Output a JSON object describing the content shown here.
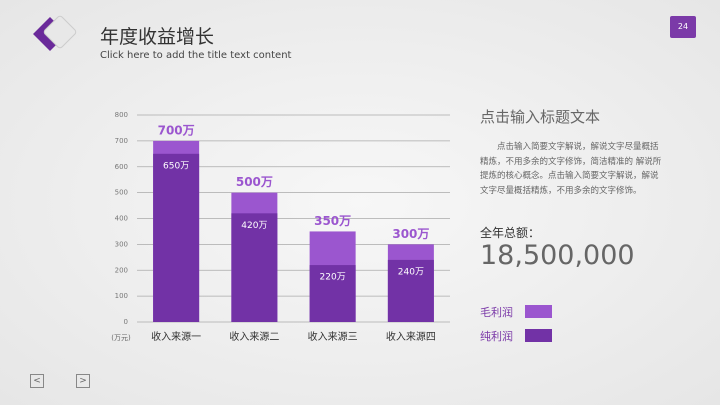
{
  "header": {
    "title": "年度收益增长",
    "subtitle": "Click here to add the title text content",
    "page_number": "24"
  },
  "chart_data": {
    "type": "bar",
    "y_unit": "(万元)",
    "categories": [
      "收入来源一",
      "收入来源二",
      "收入来源三",
      "收入来源四"
    ],
    "series": [
      {
        "name": "毛利润",
        "color": "#9b56cf",
        "values": [
          700,
          500,
          350,
          300
        ],
        "value_labels": [
          "700万",
          "500万",
          "350万",
          "300万"
        ]
      },
      {
        "name": "纯利润",
        "color": "#7232a6",
        "values": [
          650,
          420,
          220,
          240
        ],
        "value_labels": [
          "650万",
          "420万",
          "220万",
          "240万"
        ]
      }
    ],
    "ylim": [
      0,
      800
    ],
    "yticks": [
      0,
      100,
      200,
      300,
      400,
      500,
      600,
      700,
      800
    ],
    "grid": true
  },
  "side": {
    "title": "点击输入标题文本",
    "text": "点击输入简要文字解说，解说文字尽量概括精炼，不用多余的文字修饰，简洁精准的 解说所提炼的核心概念。点击输入简要文字解说，解说文字尽量概括精炼，不用多余的文字修饰。",
    "total_label": "全年总额：",
    "total_value": "18,500,000"
  }
}
